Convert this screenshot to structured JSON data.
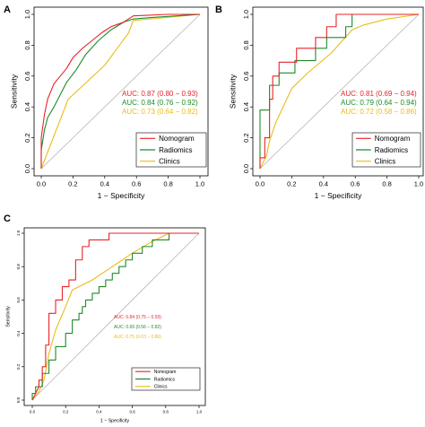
{
  "chart_data": [
    {
      "type": "line",
      "panel_label": "A",
      "xlabel": "1 − Specificity",
      "ylabel": "Sensitivity",
      "xlim": [
        0,
        1
      ],
      "ylim": [
        0,
        1
      ],
      "x_ticks": [
        "0.0",
        "0.2",
        "0.4",
        "0.6",
        "0.8",
        "1.0"
      ],
      "y_ticks": [
        "0.0",
        "0.2",
        "0.4",
        "0.6",
        "0.8",
        "1.0"
      ],
      "grid": false,
      "legend_position": "bottom-right",
      "diagonal_reference": true,
      "annotations": [
        {
          "text": "AUC: 0.87 (0.80 − 0.93)",
          "color": "#e8232a"
        },
        {
          "text": "AUC: 0.84 (0.76 − 0.92)",
          "color": "#1e8a2a"
        },
        {
          "text": "AUC: 0.73 (0.64 − 0.82)",
          "color": "#eabc16"
        }
      ],
      "series": [
        {
          "name": "Nomogram",
          "color": "#e8232a",
          "points": [
            [
              0,
              0
            ],
            [
              0,
              0.2
            ],
            [
              0.02,
              0.35
            ],
            [
              0.04,
              0.45
            ],
            [
              0.06,
              0.5
            ],
            [
              0.08,
              0.55
            ],
            [
              0.12,
              0.6
            ],
            [
              0.16,
              0.65
            ],
            [
              0.2,
              0.72
            ],
            [
              0.26,
              0.78
            ],
            [
              0.32,
              0.83
            ],
            [
              0.38,
              0.88
            ],
            [
              0.44,
              0.92
            ],
            [
              0.52,
              0.95
            ],
            [
              0.58,
              0.99
            ],
            [
              0.8,
              1
            ],
            [
              1,
              1
            ]
          ]
        },
        {
          "name": "Radiomics",
          "color": "#1e8a2a",
          "points": [
            [
              0,
              0
            ],
            [
              0,
              0.12
            ],
            [
              0.02,
              0.25
            ],
            [
              0.04,
              0.33
            ],
            [
              0.08,
              0.4
            ],
            [
              0.12,
              0.48
            ],
            [
              0.16,
              0.56
            ],
            [
              0.22,
              0.64
            ],
            [
              0.28,
              0.74
            ],
            [
              0.36,
              0.83
            ],
            [
              0.44,
              0.9
            ],
            [
              0.52,
              0.95
            ],
            [
              0.58,
              0.97
            ],
            [
              0.7,
              0.98
            ],
            [
              1,
              1
            ]
          ]
        },
        {
          "name": "Clinics",
          "color": "#eabc16",
          "points": [
            [
              0,
              0
            ],
            [
              0.17,
              0.45
            ],
            [
              0.4,
              0.67
            ],
            [
              0.55,
              0.88
            ],
            [
              0.58,
              0.96
            ],
            [
              1,
              1
            ]
          ]
        }
      ]
    },
    {
      "type": "line",
      "panel_label": "B",
      "xlabel": "1 − Specificity",
      "ylabel": "Sensitivity",
      "xlim": [
        0,
        1
      ],
      "ylim": [
        0,
        1
      ],
      "x_ticks": [
        "0.0",
        "0.2",
        "0.4",
        "0.6",
        "0.8",
        "1.0"
      ],
      "y_ticks": [
        "0.0",
        "0.2",
        "0.4",
        "0.6",
        "0.8",
        "1.0"
      ],
      "grid": false,
      "legend_position": "bottom-right",
      "diagonal_reference": true,
      "annotations": [
        {
          "text": "AUC: 0.81 (0.69 − 0.94)",
          "color": "#e8232a"
        },
        {
          "text": "AUC: 0.79 (0.64 − 0.94)",
          "color": "#1e8a2a"
        },
        {
          "text": "AUC: 0.72 (0.58 − 0.86)",
          "color": "#eabc16"
        }
      ],
      "series": [
        {
          "name": "Nomogram",
          "color": "#e8232a",
          "points": [
            [
              0,
              0
            ],
            [
              0,
              0.07
            ],
            [
              0.03,
              0.07
            ],
            [
              0.03,
              0.2
            ],
            [
              0.06,
              0.2
            ],
            [
              0.06,
              0.45
            ],
            [
              0.08,
              0.45
            ],
            [
              0.08,
              0.6
            ],
            [
              0.12,
              0.6
            ],
            [
              0.12,
              0.69
            ],
            [
              0.23,
              0.69
            ],
            [
              0.23,
              0.78
            ],
            [
              0.35,
              0.78
            ],
            [
              0.35,
              0.85
            ],
            [
              0.42,
              0.85
            ],
            [
              0.42,
              0.92
            ],
            [
              0.48,
              0.92
            ],
            [
              0.48,
              1
            ],
            [
              1,
              1
            ]
          ]
        },
        {
          "name": "Radiomics",
          "color": "#1e8a2a",
          "points": [
            [
              0,
              0
            ],
            [
              0,
              0.38
            ],
            [
              0.06,
              0.38
            ],
            [
              0.06,
              0.54
            ],
            [
              0.12,
              0.54
            ],
            [
              0.12,
              0.62
            ],
            [
              0.22,
              0.62
            ],
            [
              0.22,
              0.7
            ],
            [
              0.35,
              0.7
            ],
            [
              0.35,
              0.78
            ],
            [
              0.42,
              0.78
            ],
            [
              0.42,
              0.85
            ],
            [
              0.54,
              0.85
            ],
            [
              0.54,
              0.92
            ],
            [
              0.58,
              0.92
            ],
            [
              0.58,
              1
            ],
            [
              1,
              1
            ]
          ]
        },
        {
          "name": "Clinics",
          "color": "#eabc16",
          "points": [
            [
              0,
              0
            ],
            [
              0.04,
              0.08
            ],
            [
              0.06,
              0.18
            ],
            [
              0.1,
              0.3
            ],
            [
              0.2,
              0.52
            ],
            [
              0.3,
              0.62
            ],
            [
              0.45,
              0.75
            ],
            [
              0.58,
              0.9
            ],
            [
              0.65,
              0.93
            ],
            [
              0.8,
              0.97
            ],
            [
              1,
              1
            ]
          ]
        }
      ]
    },
    {
      "type": "line",
      "panel_label": "C",
      "xlabel": "1 − Specificity",
      "ylabel": "Sensitivity",
      "xlim": [
        0,
        1
      ],
      "ylim": [
        0,
        1
      ],
      "x_ticks": [
        "0.0",
        "0.2",
        "0.4",
        "0.6",
        "0.8",
        "1.0"
      ],
      "y_ticks": [
        "0.0",
        "0.2",
        "0.4",
        "0.6",
        "0.8",
        "1.0"
      ],
      "grid": false,
      "legend_position": "bottom-right",
      "diagonal_reference": true,
      "annotations": [
        {
          "text": "AUC: 0.84 (0.75 − 0.93)",
          "color": "#e8232a"
        },
        {
          "text": "AUC: 0.69 (0.56 − 0.82)",
          "color": "#1e8a2a"
        },
        {
          "text": "AUC: 0.75 (0.63 − 0.86)",
          "color": "#eabc16"
        }
      ],
      "series": [
        {
          "name": "Nomogram",
          "color": "#e8232a",
          "points": [
            [
              0,
              0
            ],
            [
              0.02,
              0.04
            ],
            [
              0.04,
              0.08
            ],
            [
              0.04,
              0.12
            ],
            [
              0.06,
              0.12
            ],
            [
              0.06,
              0.2
            ],
            [
              0.08,
              0.2
            ],
            [
              0.08,
              0.33
            ],
            [
              0.1,
              0.33
            ],
            [
              0.1,
              0.52
            ],
            [
              0.14,
              0.52
            ],
            [
              0.14,
              0.6
            ],
            [
              0.18,
              0.6
            ],
            [
              0.18,
              0.68
            ],
            [
              0.22,
              0.68
            ],
            [
              0.22,
              0.72
            ],
            [
              0.26,
              0.72
            ],
            [
              0.26,
              0.84
            ],
            [
              0.3,
              0.84
            ],
            [
              0.3,
              0.92
            ],
            [
              0.34,
              0.92
            ],
            [
              0.34,
              0.96
            ],
            [
              0.46,
              0.96
            ],
            [
              0.46,
              1
            ],
            [
              1,
              1
            ]
          ]
        },
        {
          "name": "Radiomics",
          "color": "#1e8a2a",
          "points": [
            [
              0,
              0
            ],
            [
              0,
              0.04
            ],
            [
              0.02,
              0.04
            ],
            [
              0.02,
              0.08
            ],
            [
              0.06,
              0.08
            ],
            [
              0.06,
              0.16
            ],
            [
              0.1,
              0.16
            ],
            [
              0.1,
              0.24
            ],
            [
              0.14,
              0.24
            ],
            [
              0.14,
              0.32
            ],
            [
              0.2,
              0.32
            ],
            [
              0.2,
              0.4
            ],
            [
              0.24,
              0.4
            ],
            [
              0.24,
              0.48
            ],
            [
              0.28,
              0.48
            ],
            [
              0.28,
              0.52
            ],
            [
              0.3,
              0.52
            ],
            [
              0.3,
              0.56
            ],
            [
              0.32,
              0.56
            ],
            [
              0.32,
              0.6
            ],
            [
              0.36,
              0.6
            ],
            [
              0.36,
              0.64
            ],
            [
              0.4,
              0.64
            ],
            [
              0.4,
              0.68
            ],
            [
              0.44,
              0.68
            ],
            [
              0.44,
              0.72
            ],
            [
              0.48,
              0.72
            ],
            [
              0.48,
              0.76
            ],
            [
              0.52,
              0.76
            ],
            [
              0.52,
              0.8
            ],
            [
              0.56,
              0.8
            ],
            [
              0.56,
              0.84
            ],
            [
              0.6,
              0.84
            ],
            [
              0.6,
              0.88
            ],
            [
              0.66,
              0.88
            ],
            [
              0.66,
              0.92
            ],
            [
              0.72,
              0.92
            ],
            [
              0.72,
              0.96
            ],
            [
              0.82,
              0.96
            ],
            [
              0.82,
              1
            ],
            [
              1,
              1
            ]
          ]
        },
        {
          "name": "Clinics",
          "color": "#eabc16",
          "points": [
            [
              0,
              0
            ],
            [
              0.04,
              0.05
            ],
            [
              0.07,
              0.12
            ],
            [
              0.1,
              0.28
            ],
            [
              0.14,
              0.42
            ],
            [
              0.2,
              0.56
            ],
            [
              0.24,
              0.66
            ],
            [
              0.36,
              0.72
            ],
            [
              0.48,
              0.8
            ],
            [
              0.6,
              0.88
            ],
            [
              0.7,
              0.94
            ],
            [
              0.82,
              1
            ],
            [
              1,
              1
            ]
          ]
        }
      ]
    }
  ]
}
